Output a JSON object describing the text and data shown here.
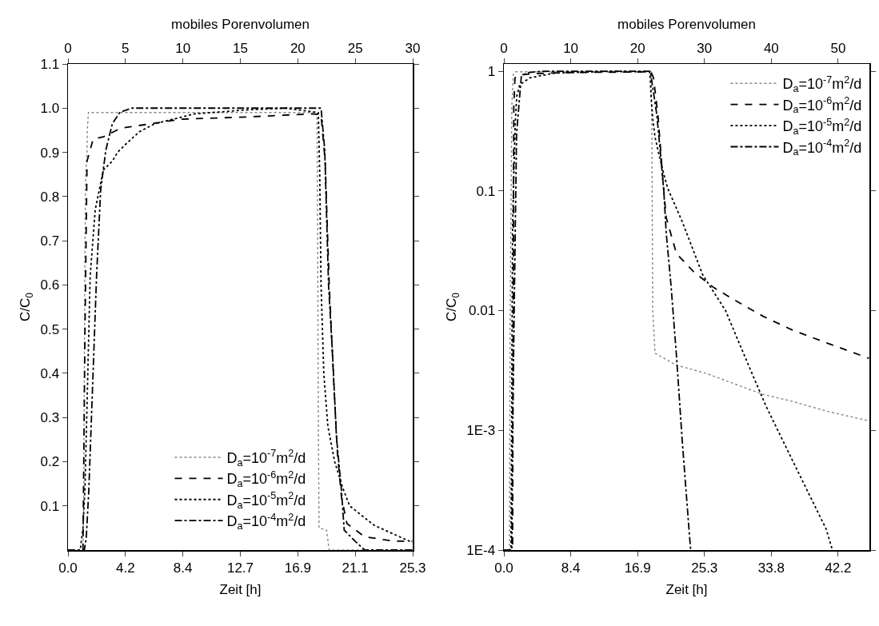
{
  "chart_data": [
    {
      "type": "line",
      "xlabel": "Zeit [h]",
      "x2label": "mobiles Porenvolumen",
      "ylabel": "C/C$_{0}$",
      "xlim": [
        0,
        25.335
      ],
      "xticks": [
        {
          "value": 0,
          "label": "0.0"
        },
        {
          "value": 4.2225,
          "label": "4.2"
        },
        {
          "value": 8.445,
          "label": "8.4"
        },
        {
          "value": 12.6675,
          "label": "12.7"
        },
        {
          "value": 16.89,
          "label": "16.9"
        },
        {
          "value": 21.1125,
          "label": "21.1"
        },
        {
          "value": 25.335,
          "label": "25.3"
        }
      ],
      "x2lim": [
        0,
        30
      ],
      "x2ticks": [
        0,
        5,
        10,
        15,
        20,
        25,
        30
      ],
      "ylim": [
        0,
        1.1
      ],
      "yticks": [
        0.1,
        0.2,
        0.3,
        0.4,
        0.5,
        0.6,
        0.7,
        0.8,
        0.9,
        {
          "value": 1.0,
          "label": "1.0"
        },
        1.1
      ],
      "legend": "bottom",
      "series": [
        {
          "name": "D$_{a}$=10$^{-7}$m$^{2}$/d",
          "color": "#888888",
          "line_style": "dotted",
          "x": [
            0,
            1.1,
            1.15,
            1.2,
            1.25,
            1.3,
            1.4,
            1.42,
            1.5,
            18.3,
            18.35,
            18.4,
            18.45,
            19.0,
            19.2,
            21.8,
            25.3
          ],
          "values": [
            0,
            0,
            0.1,
            0.4,
            0.7,
            0.85,
            0.9,
            0.95,
            0.99,
            0.99,
            0.7,
            0.3,
            0.05,
            0.045,
            0,
            0,
            0
          ]
        },
        {
          "name": "D$_{a}$=10$^{-6}$m$^{2}$/d",
          "color": "#000000",
          "line_style": "dashed",
          "x": [
            0,
            1.1,
            1.25,
            1.4,
            1.85,
            2.6,
            3.9,
            6.2,
            8.3,
            13.1,
            17.9,
            18.6,
            18.9,
            19.2,
            19.5,
            19.8,
            20.1,
            20.5,
            21.8,
            24.0,
            25.3
          ],
          "values": [
            0,
            0,
            0.5,
            0.88,
            0.93,
            0.935,
            0.955,
            0.965,
            0.975,
            0.98,
            0.987,
            0.985,
            0.88,
            0.6,
            0.4,
            0.22,
            0.12,
            0.06,
            0.03,
            0.02,
            0.02
          ]
        },
        {
          "name": "D$_{a}$=10$^{-5}$m$^{2}$/d",
          "color": "#000000",
          "line_style": "dotted",
          "x": [
            0,
            0.9,
            1.1,
            1.25,
            1.44,
            1.63,
            2.0,
            2.6,
            3.26,
            3.64,
            4.3,
            5.27,
            6.4,
            9.3,
            13.1,
            16.0,
            18.4,
            18.5,
            18.6,
            18.8,
            19.1,
            19.6,
            20.2,
            20.7,
            22.5,
            25.1,
            25.3
          ],
          "values": [
            0,
            0,
            0.05,
            0.14,
            0.38,
            0.62,
            0.77,
            0.86,
            0.88,
            0.9,
            0.92,
            0.947,
            0.965,
            0.987,
            0.996,
            1.0,
            0.99,
            0.85,
            0.6,
            0.4,
            0.28,
            0.2,
            0.14,
            0.1,
            0.056,
            0.02,
            0.02
          ]
        },
        {
          "name": "D$_{a}$=10$^{-4}$m$^{2}$/d",
          "color": "#000000",
          "line_style": "dashdot",
          "x": [
            0,
            1.2,
            1.34,
            1.53,
            1.82,
            2.1,
            2.4,
            2.78,
            3.26,
            3.83,
            4.7,
            18.6,
            18.87,
            19.15,
            19.45,
            19.73,
            20.1,
            20.3,
            21.1,
            21.8,
            25.3
          ],
          "values": [
            0,
            0,
            0.026,
            0.135,
            0.38,
            0.62,
            0.814,
            0.905,
            0.965,
            0.991,
            1.0,
            1.0,
            0.905,
            0.6,
            0.44,
            0.256,
            0.135,
            0.045,
            0.02,
            0,
            0
          ]
        }
      ]
    },
    {
      "type": "line",
      "xlabel": "Zeit [h]",
      "x2label": "mobiles Porenvolumen",
      "ylabel": "C/C$_{0}$",
      "log": "y",
      "xlim": [
        0,
        46.17
      ],
      "xticks": [
        {
          "value": 0,
          "label": "0.0"
        },
        {
          "value": 8.445,
          "label": "8.4"
        },
        {
          "value": 16.89,
          "label": "16.9"
        },
        {
          "value": 25.335,
          "label": "25.3"
        },
        {
          "value": 33.78,
          "label": "33.8"
        },
        {
          "value": 42.225,
          "label": "42.2"
        }
      ],
      "x2lim": [
        0,
        54.67
      ],
      "x2ticks": [
        0,
        10,
        20,
        30,
        40,
        50
      ],
      "ylim": [
        0.0001,
        1.15
      ],
      "yticks": [
        {
          "value": 0.0001,
          "label": "1E-4"
        },
        {
          "value": 0.001,
          "label": "1E-3"
        },
        0.01,
        0.1,
        1
      ],
      "legend": "top right",
      "series": [
        {
          "name": "D$_{a}$=10$^{-7}$m$^{2}$/d",
          "color": "#888888",
          "line_style": "dotted",
          "x": [
            0,
            0.7,
            0.8,
            1.0,
            1.2,
            1.5,
            18.6,
            18.7,
            18.75,
            18.8,
            19.1,
            21.8,
            25.5,
            32.7,
            36.4,
            40.7,
            46.1
          ],
          "values": [
            0.0001,
            0.0001,
            0.01,
            0.5,
            0.95,
            0.99,
            0.99,
            0.3,
            0.05,
            0.01,
            0.0044,
            0.0035,
            0.003,
            0.002,
            0.00175,
            0.00145,
            0.0012
          ]
        },
        {
          "name": "D$_{a}$=10$^{-6}$m$^{2}$/d",
          "color": "#000000",
          "line_style": "dashed",
          "x": [
            0,
            1.1,
            1.25,
            1.4,
            1.85,
            3.9,
            8.3,
            17.9,
            18.6,
            18.9,
            19.2,
            19.5,
            19.8,
            20.1,
            20.5,
            21.8,
            24.0,
            26.5,
            29.1,
            32.7,
            36.4,
            40.7,
            46.1
          ],
          "values": [
            0.0001,
            0.0001,
            0.5,
            0.88,
            0.93,
            0.955,
            0.975,
            0.987,
            0.985,
            0.88,
            0.6,
            0.4,
            0.22,
            0.12,
            0.06,
            0.03,
            0.021,
            0.0156,
            0.0123,
            0.009,
            0.0069,
            0.0054,
            0.004
          ]
        },
        {
          "name": "D$_{a}$=10$^{-5}$m$^{2}$/d",
          "color": "#000000",
          "line_style": "dotted",
          "x": [
            0,
            0.9,
            1.1,
            1.25,
            1.44,
            1.63,
            2.0,
            3.26,
            6.4,
            13.1,
            18.4,
            18.5,
            18.6,
            18.8,
            19.1,
            19.6,
            20.2,
            20.7,
            22.5,
            25.1,
            28.0,
            30.9,
            33.1,
            36.4,
            40.7,
            41.5
          ],
          "values": [
            0.0001,
            0.0001,
            0.05,
            0.14,
            0.38,
            0.62,
            0.77,
            0.88,
            0.965,
            0.996,
            0.99,
            0.85,
            0.6,
            0.4,
            0.28,
            0.2,
            0.138,
            0.105,
            0.056,
            0.02,
            0.01,
            0.0035,
            0.0016,
            0.00057,
            0.00015,
            0.0001
          ]
        },
        {
          "name": "D$_{a}$=10$^{-4}$m$^{2}$/d",
          "color": "#000000",
          "line_style": "dashdot",
          "x": [
            0,
            1.0,
            1.1,
            1.6,
            2.2,
            2.9,
            4.7,
            18.5,
            19.3,
            19.8,
            20.2,
            20.5,
            21.1,
            21.8,
            22.5,
            23.45,
            23.6
          ],
          "values": [
            0.0001,
            0.0001,
            0.001,
            0.3,
            0.9,
            0.97,
            1.0,
            1.0,
            0.44,
            0.2,
            0.1,
            0.045,
            0.0166,
            0.0042,
            0.00087,
            0.00013,
            0.0001
          ]
        }
      ]
    }
  ]
}
